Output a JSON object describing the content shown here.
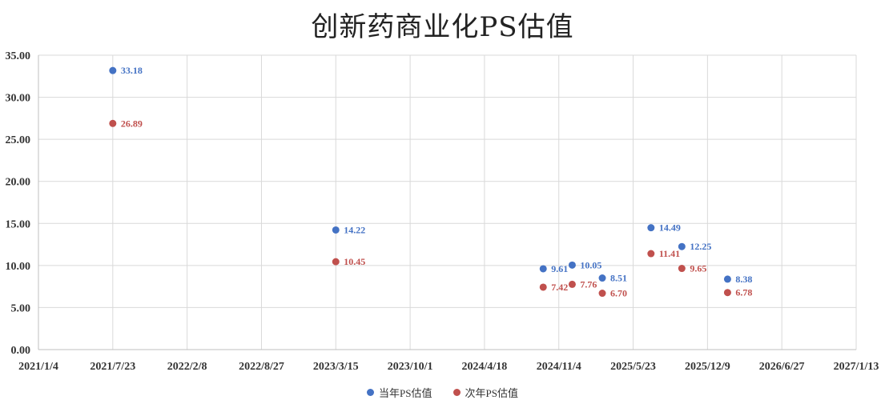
{
  "chart_data": {
    "type": "scatter",
    "title": "创新药商业化PS估值",
    "xlabel": "",
    "ylabel": "",
    "x_axis": {
      "type": "date",
      "min": "2021-01-04",
      "max": "2027-01-13",
      "ticks": [
        {
          "date": "2021-01-04",
          "label": "2021/1/4"
        },
        {
          "date": "2021-07-23",
          "label": "2021/7/23"
        },
        {
          "date": "2022-02-08",
          "label": "2022/2/8"
        },
        {
          "date": "2022-08-27",
          "label": "2022/8/27"
        },
        {
          "date": "2023-03-15",
          "label": "2023/3/15"
        },
        {
          "date": "2023-10-01",
          "label": "2023/10/1"
        },
        {
          "date": "2024-04-18",
          "label": "2024/4/18"
        },
        {
          "date": "2024-11-04",
          "label": "2024/11/4"
        },
        {
          "date": "2025-05-23",
          "label": "2025/5/23"
        },
        {
          "date": "2025-12-09",
          "label": "2025/12/9"
        },
        {
          "date": "2026-06-27",
          "label": "2026/6/27"
        },
        {
          "date": "2027-01-13",
          "label": "2027/1/13"
        }
      ]
    },
    "y_axis": {
      "ylim": [
        0,
        35
      ],
      "ticks": [
        {
          "value": 0,
          "label": "0.00"
        },
        {
          "value": 5,
          "label": "5.00"
        },
        {
          "value": 10,
          "label": "10.00"
        },
        {
          "value": 15,
          "label": "15.00"
        },
        {
          "value": 20,
          "label": "20.00"
        },
        {
          "value": 25,
          "label": "25.00"
        },
        {
          "value": 30,
          "label": "30.00"
        },
        {
          "value": 35,
          "label": "35.00"
        }
      ]
    },
    "grid": true,
    "legend_position": "bottom-center",
    "series": [
      {
        "name": "当年PS估值",
        "color": "#4472C4",
        "points": [
          {
            "x": "2021-07-23",
            "y": 33.18,
            "label": "33.18"
          },
          {
            "x": "2023-03-15",
            "y": 14.22,
            "label": "14.22"
          },
          {
            "x": "2024-09-23",
            "y": 9.61,
            "label": "9.61"
          },
          {
            "x": "2024-12-10",
            "y": 10.05,
            "label": "10.05"
          },
          {
            "x": "2025-03-01",
            "y": 8.51,
            "label": "8.51"
          },
          {
            "x": "2025-07-10",
            "y": 14.49,
            "label": "14.49"
          },
          {
            "x": "2025-10-01",
            "y": 12.25,
            "label": "12.25"
          },
          {
            "x": "2026-02-01",
            "y": 8.38,
            "label": "8.38"
          }
        ]
      },
      {
        "name": "次年PS估值",
        "color": "#C0504D",
        "points": [
          {
            "x": "2021-07-23",
            "y": 26.89,
            "label": "26.89"
          },
          {
            "x": "2023-03-15",
            "y": 10.45,
            "label": "10.45"
          },
          {
            "x": "2024-09-23",
            "y": 7.42,
            "label": "7.42"
          },
          {
            "x": "2024-12-10",
            "y": 7.76,
            "label": "7.76"
          },
          {
            "x": "2025-03-01",
            "y": 6.7,
            "label": "6.70"
          },
          {
            "x": "2025-07-10",
            "y": 11.41,
            "label": "11.41"
          },
          {
            "x": "2025-10-01",
            "y": 9.65,
            "label": "9.65"
          },
          {
            "x": "2026-02-01",
            "y": 6.78,
            "label": "6.78"
          }
        ]
      }
    ]
  }
}
